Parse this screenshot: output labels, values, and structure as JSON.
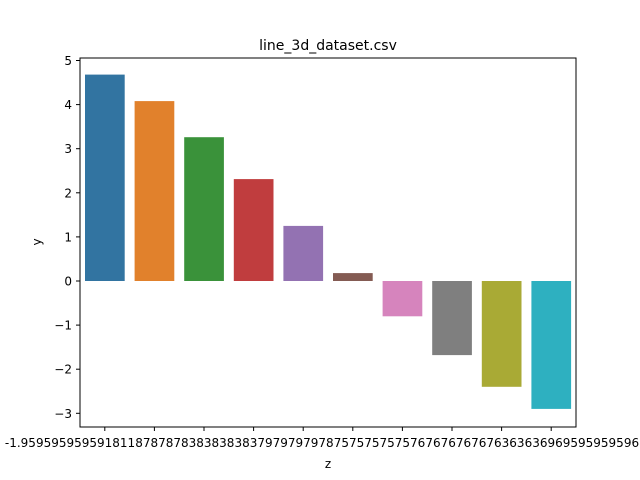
{
  "chart_data": {
    "type": "bar",
    "title": "line_3d_dataset.csv",
    "xlabel": "z",
    "ylabel": "y",
    "ylim": [
      -3.3,
      5.1
    ],
    "yticks": [
      5,
      4,
      3,
      2,
      1,
      0,
      -1,
      -2,
      -3
    ],
    "ytick_labels": [
      "5",
      "4",
      "3",
      "2",
      "1",
      "0",
      "−1",
      "−2",
      "−3"
    ],
    "categories": [
      "-1.9595959595960",
      "-1.5151515151515",
      "-1.1878787878788",
      "-0.8383838383838",
      "-0.4797979797980",
      "-0.1515151515152",
      "0.1717171717172",
      "0.4747474747475",
      "0.8383838383838",
      "1.9595959595960"
    ],
    "values": [
      4.68,
      4.08,
      3.26,
      2.31,
      1.25,
      0.18,
      -0.8,
      -1.68,
      -2.4,
      -2.9
    ],
    "colors": [
      "#3274a1",
      "#e1812c",
      "#3a923a",
      "#c03d3e",
      "#9372b2",
      "#845b53",
      "#d684bd",
      "#7f7f7f",
      "#a9aa35",
      "#2eb0c0"
    ],
    "xtick_text": "-1.959595959591811878787838383838379797979787575757575767676767676363636969595959596",
    "grid": false,
    "legend": "none"
  }
}
